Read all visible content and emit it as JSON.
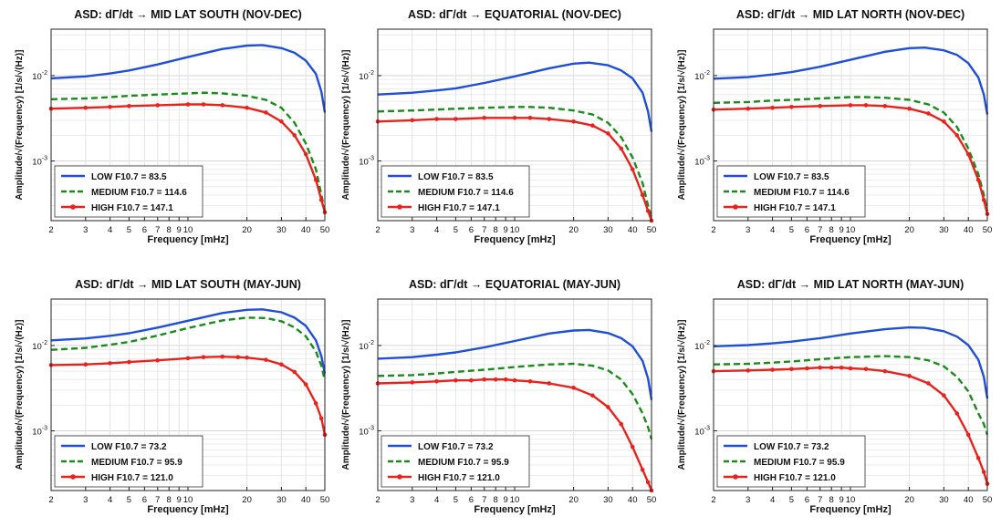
{
  "figure": {
    "x_ticks": [
      2,
      3,
      4,
      5,
      6,
      7,
      8,
      9,
      10,
      20,
      30,
      40,
      50
    ],
    "y_tick_labels": [
      "10-2",
      "10-3"
    ],
    "xlabel": "Frequency   [mHz]",
    "ylabel": "Amplitude/√(Frequency)   [1/s/√(Hz)]",
    "colors": {
      "low": "#1f4fd8",
      "medium": "#1a8c1a",
      "high": "#e8221c"
    }
  },
  "chart_data": [
    {
      "type": "line",
      "title": "ASD: dΓ/dt → MID LAT SOUTH (NOV-DEC)",
      "xlabel": "Frequency   [mHz]",
      "ylabel": "Amplitude/√(Frequency)   [1/s/√(Hz)]",
      "x_scale": "log",
      "y_scale": "log",
      "xlim": [
        2,
        50
      ],
      "ylim": [
        0.0002,
        0.035
      ],
      "grid": true,
      "legend": "bottom-left",
      "series": [
        {
          "name": "LOW",
          "legend_label": "LOW      F10.7 =  83.5",
          "color": "#1f4fd8",
          "style": "solid",
          "x": [
            2,
            3,
            4,
            5,
            7,
            10,
            15,
            20,
            24,
            30,
            35,
            40,
            45,
            48,
            50
          ],
          "y": [
            0.0093,
            0.0098,
            0.0106,
            0.0115,
            0.0135,
            0.0165,
            0.0205,
            0.0225,
            0.0228,
            0.021,
            0.0185,
            0.015,
            0.0105,
            0.0065,
            0.0037
          ]
        },
        {
          "name": "MEDIUM",
          "legend_label": "MEDIUM F10.7 = 114.6",
          "color": "#1a8c1a",
          "style": "dashed",
          "x": [
            2,
            3,
            4,
            5,
            7,
            10,
            12,
            15,
            20,
            25,
            30,
            35,
            40,
            45,
            48,
            50
          ],
          "y": [
            0.0053,
            0.0054,
            0.0056,
            0.0058,
            0.006,
            0.0062,
            0.0063,
            0.0062,
            0.0058,
            0.0052,
            0.0042,
            0.0028,
            0.0016,
            0.0008,
            0.0004,
            0.00026
          ]
        },
        {
          "name": "HIGH",
          "legend_label": "HIGH     F10.7 = 147.1",
          "color": "#e8221c",
          "style": "solid-markers",
          "x": [
            2,
            3,
            4,
            5,
            7,
            10,
            12,
            15,
            20,
            25,
            30,
            35,
            40,
            45,
            48,
            50
          ],
          "y": [
            0.0041,
            0.0042,
            0.0043,
            0.0044,
            0.0045,
            0.0046,
            0.0046,
            0.0045,
            0.0042,
            0.0037,
            0.0029,
            0.002,
            0.0012,
            0.0006,
            0.00035,
            0.00025
          ]
        }
      ]
    },
    {
      "type": "line",
      "title": "ASD: dΓ/dt → EQUATORIAL (NOV-DEC)",
      "xlabel": "Frequency   [mHz]",
      "ylabel": "Amplitude/√(Frequency)   [1/s/√(Hz)]",
      "x_scale": "log",
      "y_scale": "log",
      "xlim": [
        2,
        50
      ],
      "ylim": [
        0.0002,
        0.035
      ],
      "grid": true,
      "legend": "bottom-left",
      "series": [
        {
          "name": "LOW",
          "legend_label": "LOW      F10.7 =  83.5",
          "color": "#1f4fd8",
          "style": "solid",
          "x": [
            2,
            3,
            4,
            5,
            7,
            10,
            15,
            20,
            24,
            30,
            35,
            40,
            45,
            48,
            50
          ],
          "y": [
            0.006,
            0.0063,
            0.0067,
            0.0071,
            0.0082,
            0.0098,
            0.0122,
            0.0138,
            0.0142,
            0.0132,
            0.0115,
            0.0093,
            0.0063,
            0.0038,
            0.0022
          ]
        },
        {
          "name": "MEDIUM",
          "legend_label": "MEDIUM F10.7 = 114.6",
          "color": "#1a8c1a",
          "style": "dashed",
          "x": [
            2,
            3,
            4,
            5,
            7,
            10,
            12,
            15,
            20,
            25,
            30,
            35,
            40,
            45,
            48,
            50
          ],
          "y": [
            0.0038,
            0.0039,
            0.004,
            0.0041,
            0.0042,
            0.0043,
            0.0043,
            0.0042,
            0.0039,
            0.0035,
            0.0028,
            0.0019,
            0.0011,
            0.00055,
            0.0003,
            0.00022
          ]
        },
        {
          "name": "HIGH",
          "legend_label": "HIGH     F10.7 = 147.1",
          "color": "#e8221c",
          "style": "solid-markers",
          "x": [
            2,
            3,
            4,
            5,
            7,
            10,
            12,
            15,
            20,
            25,
            30,
            35,
            40,
            45,
            48,
            50
          ],
          "y": [
            0.0029,
            0.003,
            0.0031,
            0.0031,
            0.0032,
            0.0032,
            0.0032,
            0.0031,
            0.0029,
            0.0026,
            0.0021,
            0.0014,
            0.0008,
            0.0004,
            0.00026,
            0.0002
          ]
        }
      ]
    },
    {
      "type": "line",
      "title": "ASD: dΓ/dt → MID LAT NORTH (NOV-DEC)",
      "xlabel": "Frequency   [mHz]",
      "ylabel": "Amplitude/√(Frequency)   [1/s/√(Hz)]",
      "x_scale": "log",
      "y_scale": "log",
      "xlim": [
        2,
        50
      ],
      "ylim": [
        0.0002,
        0.035
      ],
      "grid": true,
      "legend": "bottom-left",
      "series": [
        {
          "name": "LOW",
          "legend_label": "LOW      F10.7 =  83.5",
          "color": "#1f4fd8",
          "style": "solid",
          "x": [
            2,
            3,
            4,
            5,
            7,
            10,
            15,
            20,
            24,
            30,
            35,
            40,
            45,
            48,
            50
          ],
          "y": [
            0.0092,
            0.0096,
            0.0103,
            0.011,
            0.0127,
            0.0153,
            0.019,
            0.021,
            0.0213,
            0.0198,
            0.0175,
            0.014,
            0.0095,
            0.006,
            0.0035
          ]
        },
        {
          "name": "MEDIUM",
          "legend_label": "MEDIUM F10.7 = 114.6",
          "color": "#1a8c1a",
          "style": "dashed",
          "x": [
            2,
            3,
            4,
            5,
            7,
            10,
            12,
            15,
            20,
            25,
            30,
            35,
            40,
            45,
            48,
            50
          ],
          "y": [
            0.0048,
            0.0049,
            0.0051,
            0.0052,
            0.0054,
            0.0056,
            0.0056,
            0.0055,
            0.0052,
            0.0046,
            0.0037,
            0.0025,
            0.0014,
            0.0007,
            0.0004,
            0.00026
          ]
        },
        {
          "name": "HIGH",
          "legend_label": "HIGH     F10.7 = 147.1",
          "color": "#e8221c",
          "style": "solid-markers",
          "x": [
            2,
            3,
            4,
            5,
            7,
            10,
            12,
            15,
            20,
            25,
            30,
            35,
            40,
            45,
            48,
            50
          ],
          "y": [
            0.004,
            0.0041,
            0.0042,
            0.0043,
            0.0044,
            0.0045,
            0.0045,
            0.0044,
            0.0041,
            0.0036,
            0.0029,
            0.002,
            0.0012,
            0.0006,
            0.00035,
            0.00024
          ]
        }
      ]
    },
    {
      "type": "line",
      "title": "ASD: dΓ/dt → MID LAT SOUTH (MAY-JUN)",
      "xlabel": "Frequency   [mHz]",
      "ylabel": "Amplitude/√(Frequency)   [1/s/√(Hz)]",
      "x_scale": "log",
      "y_scale": "log",
      "xlim": [
        2,
        50
      ],
      "ylim": [
        0.0002,
        0.035
      ],
      "grid": true,
      "legend": "bottom-left",
      "series": [
        {
          "name": "LOW",
          "legend_label": "LOW      F10.7 =  73.2",
          "color": "#1f4fd8",
          "style": "solid",
          "x": [
            2,
            3,
            4,
            5,
            7,
            10,
            15,
            20,
            24,
            30,
            35,
            40,
            45,
            48,
            50
          ],
          "y": [
            0.0115,
            0.0121,
            0.013,
            0.0139,
            0.0162,
            0.0195,
            0.024,
            0.0262,
            0.0265,
            0.0245,
            0.0212,
            0.017,
            0.0115,
            0.0075,
            0.0047
          ]
        },
        {
          "name": "MEDIUM",
          "legend_label": "MEDIUM F10.7 =  95.9",
          "color": "#1a8c1a",
          "style": "dashed",
          "x": [
            2,
            3,
            4,
            5,
            7,
            10,
            15,
            20,
            25,
            30,
            35,
            40,
            45,
            48,
            50
          ],
          "y": [
            0.0089,
            0.0094,
            0.0102,
            0.011,
            0.0131,
            0.016,
            0.0197,
            0.0212,
            0.021,
            0.0192,
            0.0163,
            0.0128,
            0.0085,
            0.0058,
            0.0039
          ]
        },
        {
          "name": "HIGH",
          "legend_label": "HIGH     F10.7 = 121.0",
          "color": "#e8221c",
          "style": "solid-markers",
          "x": [
            2,
            3,
            4,
            5,
            7,
            10,
            12,
            15,
            18,
            20,
            25,
            30,
            35,
            40,
            45,
            48,
            50
          ],
          "y": [
            0.0059,
            0.006,
            0.0062,
            0.0064,
            0.0067,
            0.0071,
            0.0073,
            0.0074,
            0.0073,
            0.0072,
            0.0068,
            0.006,
            0.0049,
            0.0035,
            0.0021,
            0.0014,
            0.0009
          ]
        }
      ]
    },
    {
      "type": "line",
      "title": "ASD: dΓ/dt → EQUATORIAL (MAY-JUN)",
      "xlabel": "Frequency   [mHz]",
      "ylabel": "Amplitude/√(Frequency)   [1/s/√(Hz)]",
      "x_scale": "log",
      "y_scale": "log",
      "xlim": [
        2,
        50
      ],
      "ylim": [
        0.0002,
        0.035
      ],
      "grid": true,
      "legend": "bottom-left",
      "series": [
        {
          "name": "LOW",
          "legend_label": "LOW      F10.7 =  73.2",
          "color": "#1f4fd8",
          "style": "solid",
          "x": [
            2,
            3,
            4,
            5,
            7,
            10,
            15,
            20,
            24,
            30,
            35,
            40,
            45,
            48,
            50
          ],
          "y": [
            0.007,
            0.0073,
            0.0078,
            0.0083,
            0.0095,
            0.0113,
            0.0138,
            0.015,
            0.0152,
            0.014,
            0.0122,
            0.0098,
            0.0066,
            0.0041,
            0.0023
          ]
        },
        {
          "name": "MEDIUM",
          "legend_label": "MEDIUM F10.7 =  95.9",
          "color": "#1a8c1a",
          "style": "dashed",
          "x": [
            2,
            3,
            4,
            5,
            7,
            10,
            15,
            20,
            25,
            30,
            35,
            40,
            45,
            48,
            50
          ],
          "y": [
            0.0044,
            0.0045,
            0.0047,
            0.0049,
            0.0052,
            0.0056,
            0.006,
            0.0061,
            0.0058,
            0.0051,
            0.004,
            0.0027,
            0.0016,
            0.0011,
            0.0008
          ]
        },
        {
          "name": "HIGH",
          "legend_label": "HIGH     F10.7 = 121.0",
          "color": "#e8221c",
          "style": "solid-markers",
          "x": [
            2,
            3,
            4,
            5,
            6,
            7,
            8,
            9,
            10,
            12,
            15,
            20,
            25,
            30,
            35,
            40,
            45,
            48,
            50
          ],
          "y": [
            0.0036,
            0.0037,
            0.0038,
            0.0039,
            0.0039,
            0.004,
            0.004,
            0.004,
            0.0039,
            0.0038,
            0.0036,
            0.0032,
            0.0026,
            0.0019,
            0.0012,
            0.00065,
            0.00035,
            0.00025,
            0.0002
          ]
        }
      ]
    },
    {
      "type": "line",
      "title": "ASD: dΓ/dt → MID LAT NORTH (MAY-JUN)",
      "xlabel": "Frequency   [mHz]",
      "ylabel": "Amplitude/√(Frequency)   [1/s/√(Hz)]",
      "x_scale": "log",
      "y_scale": "log",
      "xlim": [
        2,
        50
      ],
      "ylim": [
        0.0002,
        0.035
      ],
      "grid": true,
      "legend": "bottom-left",
      "series": [
        {
          "name": "LOW",
          "legend_label": "LOW      F10.7 =  73.2",
          "color": "#1f4fd8",
          "style": "solid",
          "x": [
            2,
            3,
            4,
            5,
            7,
            10,
            15,
            20,
            24,
            30,
            35,
            40,
            45,
            48,
            50
          ],
          "y": [
            0.0098,
            0.0101,
            0.0106,
            0.0111,
            0.0122,
            0.0138,
            0.0155,
            0.0163,
            0.0161,
            0.0147,
            0.0127,
            0.0101,
            0.0068,
            0.0043,
            0.0024
          ]
        },
        {
          "name": "MEDIUM",
          "legend_label": "MEDIUM F10.7 =  95.9",
          "color": "#1a8c1a",
          "style": "dashed",
          "x": [
            2,
            3,
            4,
            5,
            7,
            10,
            15,
            20,
            25,
            30,
            35,
            40,
            45,
            48,
            50
          ],
          "y": [
            0.006,
            0.0061,
            0.0063,
            0.0065,
            0.0069,
            0.0073,
            0.0075,
            0.0073,
            0.0067,
            0.0057,
            0.0043,
            0.0029,
            0.0016,
            0.0012,
            0.0009
          ]
        },
        {
          "name": "HIGH",
          "legend_label": "HIGH     F10.7 = 121.0",
          "color": "#e8221c",
          "style": "solid-markers",
          "x": [
            2,
            3,
            4,
            5,
            6,
            7,
            8,
            9,
            10,
            12,
            15,
            20,
            25,
            30,
            35,
            40,
            45,
            48,
            50
          ],
          "y": [
            0.005,
            0.0051,
            0.0052,
            0.0053,
            0.0054,
            0.0055,
            0.0055,
            0.0055,
            0.0054,
            0.0053,
            0.005,
            0.0044,
            0.0036,
            0.0026,
            0.0016,
            0.0009,
            0.00048,
            0.00033,
            0.00024
          ]
        }
      ]
    }
  ]
}
